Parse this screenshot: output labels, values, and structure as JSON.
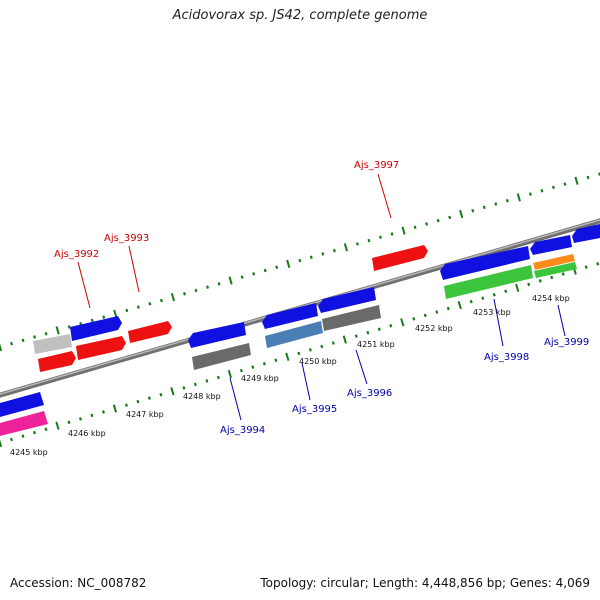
{
  "title": "Acidovorax sp. JS42, complete genome",
  "footer": {
    "accession": "Accession: NC_008782",
    "summary": "Topology: circular; Length: 4,448,856 bp; Genes: 4,069"
  },
  "colors": {
    "backbone": "#808080",
    "ticks": "#1a7a1a",
    "plus_label": "#cc0000",
    "minus_label": "#0000aa"
  },
  "ticks": [
    {
      "label": "4245 kbp"
    },
    {
      "label": "4246 kbp"
    },
    {
      "label": "4247 kbp"
    },
    {
      "label": "4248 kbp"
    },
    {
      "label": "4249 kbp"
    },
    {
      "label": "4250 kbp"
    },
    {
      "label": "4251 kbp"
    },
    {
      "label": "4252 kbp"
    },
    {
      "label": "4253 kbp"
    },
    {
      "label": "4254 kbp"
    }
  ],
  "gene_labels_plus": [
    {
      "text": "Ajs_3992"
    },
    {
      "text": "Ajs_3993"
    },
    {
      "text": "Ajs_3997"
    }
  ],
  "gene_labels_minus": [
    {
      "text": "Ajs_3994"
    },
    {
      "text": "Ajs_3995"
    },
    {
      "text": "Ajs_3996"
    },
    {
      "text": "Ajs_3998"
    },
    {
      "text": "Ajs_3999"
    }
  ],
  "feature_colors": {
    "blue": "#1010e0",
    "red": "#ee1111",
    "gray": "#c0c0c0",
    "darkgray": "#6a6a6a",
    "steel": "#4a7fb5",
    "green": "#3cc43c",
    "orange": "#ff8c1a",
    "pink": "#ee2299"
  }
}
